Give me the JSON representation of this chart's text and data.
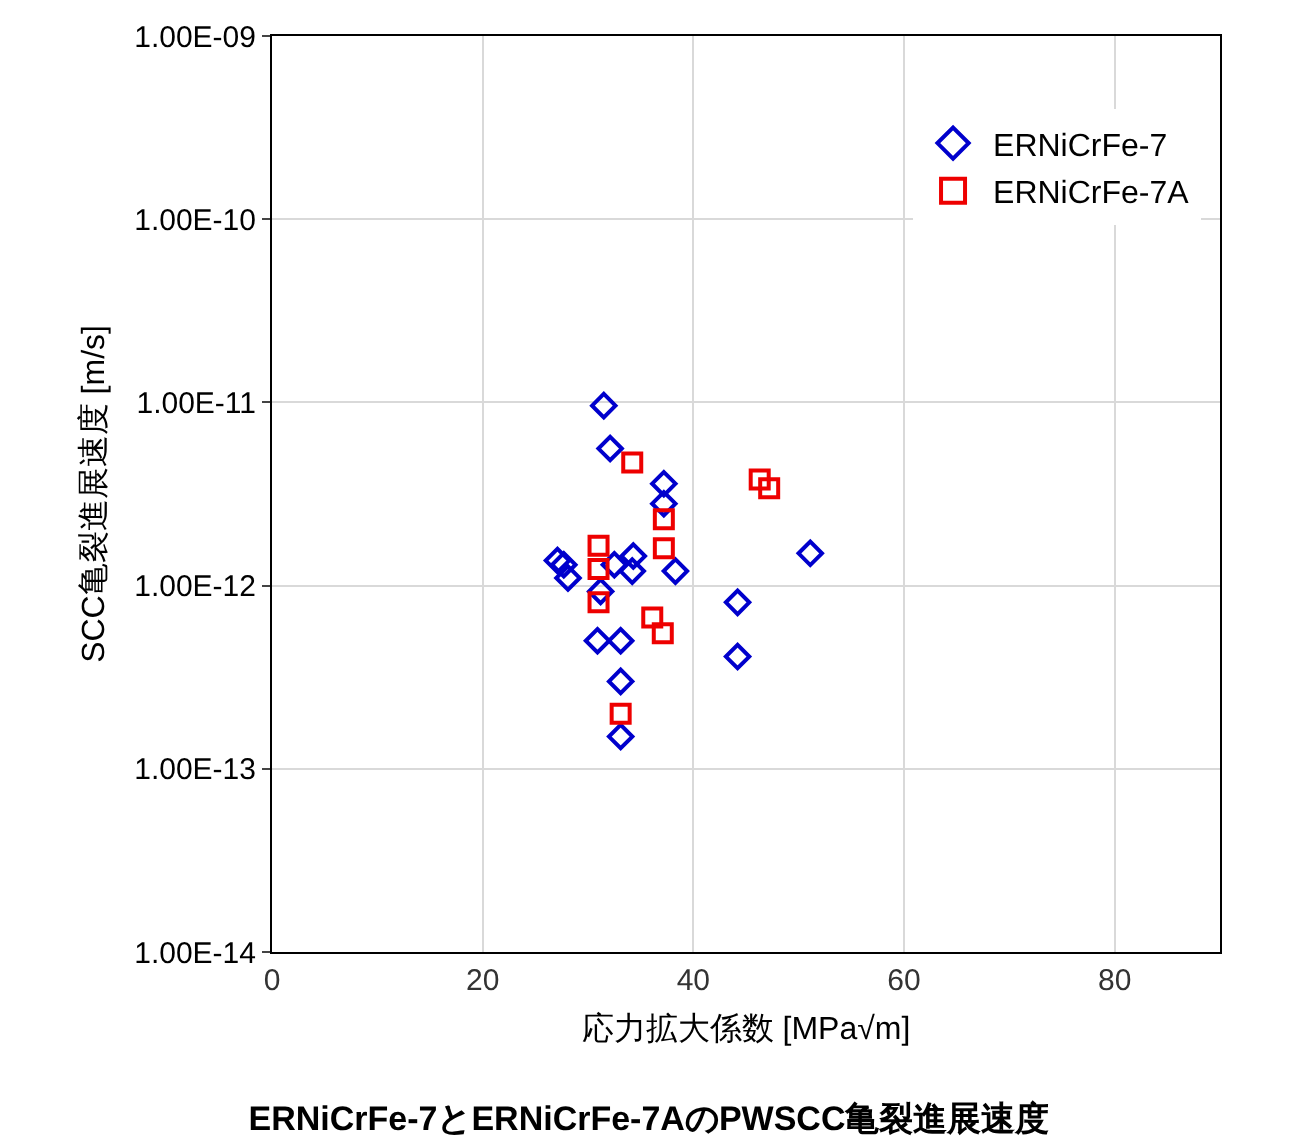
{
  "chart_data": {
    "type": "scatter",
    "title": "ERNiCrFe-7とERNiCrFe-7AのPWSCC亀裂進展速度",
    "xlabel": "応力拡大係数 [MPa√m]",
    "ylabel": "SCC亀裂進展速度 [m/s]",
    "xlim": [
      0,
      90
    ],
    "xticks": [
      0,
      20,
      40,
      60,
      80
    ],
    "ylim": [
      1e-14,
      1e-09
    ],
    "log": true,
    "yticks": [
      {
        "value": 1e-14,
        "label": "1.00E-14"
      },
      {
        "value": 1e-13,
        "label": "1.00E-13"
      },
      {
        "value": 1e-12,
        "label": "1.00E-12"
      },
      {
        "value": 1e-11,
        "label": "1.00E-11"
      },
      {
        "value": 1e-10,
        "label": "1.00E-10"
      },
      {
        "value": 1e-09,
        "label": "1.00E-09"
      }
    ],
    "grid": true,
    "legend": "top right",
    "series": [
      {
        "name": "ERNiCrFe-7",
        "color": "#0000cc",
        "marker": "diamond",
        "x": [
          31.5,
          32.1,
          37.2,
          37.2,
          27.1,
          27.7,
          28.1,
          32.5,
          34.3,
          34.2,
          38.3,
          51.1,
          31.2,
          44.2,
          30.9,
          33.1,
          44.2,
          33.1,
          33.1
        ],
        "values": [
          9.6e-12,
          5.6e-12,
          3.6e-12,
          2.8e-12,
          1.37e-12,
          1.3e-12,
          1.1e-12,
          1.3e-12,
          1.45e-12,
          1.2e-12,
          1.2e-12,
          1.5e-12,
          9.3e-13,
          8.1e-13,
          5e-13,
          5e-13,
          4.1e-13,
          3e-13,
          1.5e-13
        ]
      },
      {
        "name": "ERNiCrFe-7A",
        "color": "#ee0000",
        "marker": "square",
        "x": [
          34.2,
          46.3,
          47.2,
          37.2,
          37.2,
          31.0,
          31.0,
          31.0,
          36.1,
          37.1,
          33.1
        ],
        "values": [
          4.7e-12,
          3.8e-12,
          3.4e-12,
          2.3e-12,
          1.6e-12,
          1.65e-12,
          1.23e-12,
          8.1e-13,
          6.7e-13,
          5.5e-13,
          2e-13
        ]
      }
    ]
  }
}
